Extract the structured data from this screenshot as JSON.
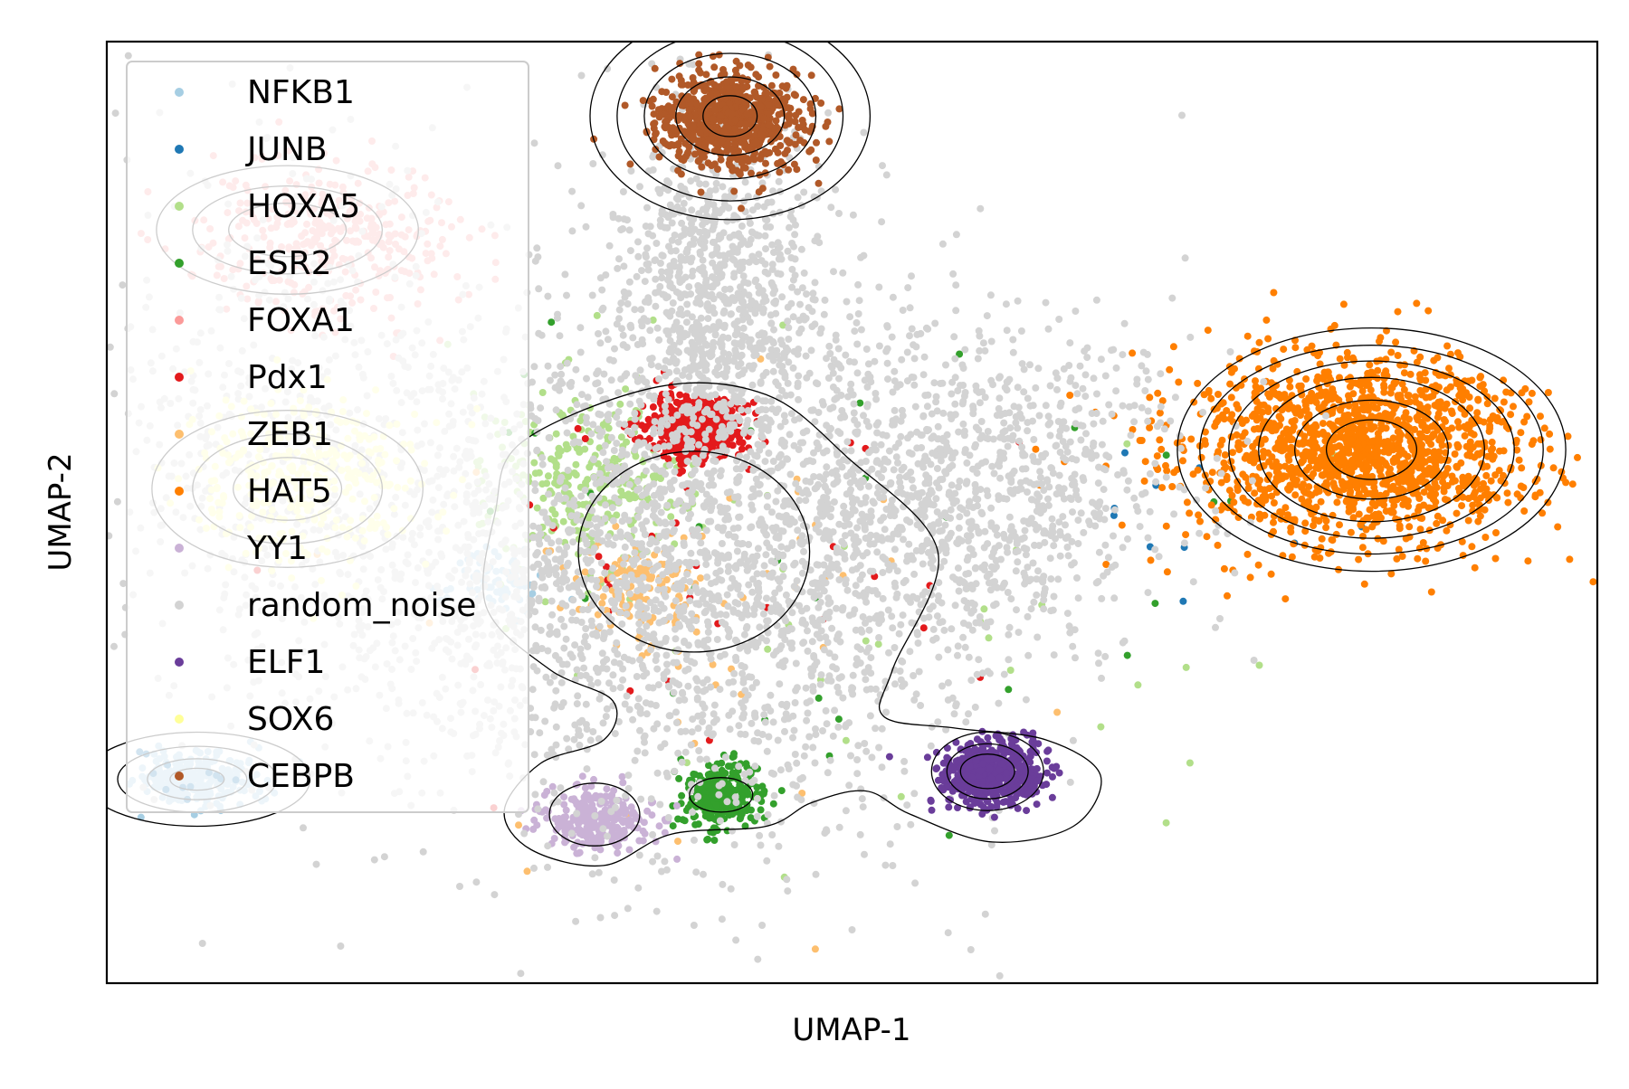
{
  "chart_data": {
    "type": "scatter",
    "title": "",
    "xlabel": "UMAP-1",
    "ylabel": "UMAP-2",
    "xlim": [
      -4.5,
      12.0
    ],
    "ylim": [
      -4.0,
      8.0
    ],
    "grid": false,
    "ticks_shown": false,
    "legend_placement": "upper-left",
    "series": [
      {
        "name": "NFKB1",
        "color": "#a6cee3",
        "clusters": [
          {
            "x": -3.5,
            "y": -1.4,
            "sx": 0.32,
            "sy": 0.18,
            "n": 260
          },
          {
            "x": -0.2,
            "y": 1.1,
            "sx": 0.28,
            "sy": 0.22,
            "n": 70
          }
        ]
      },
      {
        "name": "JUNB",
        "color": "#1f78b4",
        "clusters": [
          {
            "x": -3.5,
            "y": -1.4,
            "sx": 0.3,
            "sy": 0.2,
            "n": 12
          },
          {
            "x": 7.0,
            "y": 2.0,
            "sx": 0.8,
            "sy": 0.5,
            "n": 10
          }
        ]
      },
      {
        "name": "HOXA5",
        "color": "#b2df8a",
        "clusters": [
          {
            "x": 0.9,
            "y": 2.4,
            "sx": 0.55,
            "sy": 0.55,
            "n": 300
          },
          {
            "x": 3.5,
            "y": 1.0,
            "sx": 2.5,
            "sy": 2.0,
            "n": 40
          }
        ]
      },
      {
        "name": "ESR2",
        "color": "#33a02c",
        "clusters": [
          {
            "x": 2.3,
            "y": -1.6,
            "sx": 0.2,
            "sy": 0.2,
            "n": 320
          },
          {
            "x": 4.0,
            "y": 1.0,
            "sx": 2.5,
            "sy": 2.0,
            "n": 30
          }
        ]
      },
      {
        "name": "FOXA1",
        "color": "#fb9a99",
        "clusters": [
          {
            "x": -2.0,
            "y": 5.5,
            "sx": 0.75,
            "sy": 0.5,
            "n": 350
          }
        ]
      },
      {
        "name": "Pdx1",
        "color": "#e31a1c",
        "clusters": [
          {
            "x": 2.0,
            "y": 3.1,
            "sx": 0.28,
            "sy": 0.22,
            "n": 420
          },
          {
            "x": 2.5,
            "y": 1.5,
            "sx": 1.8,
            "sy": 1.6,
            "n": 35
          }
        ]
      },
      {
        "name": "ZEB1",
        "color": "#fdbf6f",
        "clusters": [
          {
            "x": 1.4,
            "y": 1.0,
            "sx": 0.35,
            "sy": 0.35,
            "n": 120
          },
          {
            "x": 2.5,
            "y": 0.5,
            "sx": 1.8,
            "sy": 1.8,
            "n": 40
          }
        ]
      },
      {
        "name": "HAT5",
        "color": "#ff7f00",
        "clusters": [
          {
            "x": 9.4,
            "y": 2.8,
            "sx": 0.95,
            "sy": 0.6,
            "n": 1500
          },
          {
            "x": 7.5,
            "y": 2.6,
            "sx": 1.0,
            "sy": 0.6,
            "n": 40
          }
        ]
      },
      {
        "name": "YY1",
        "color": "#cab2d6",
        "clusters": [
          {
            "x": 0.9,
            "y": -1.9,
            "sx": 0.3,
            "sy": 0.22,
            "n": 260
          }
        ]
      },
      {
        "name": "random_noise",
        "color": "#d3d3d3",
        "clusters": [
          {
            "x": 2.5,
            "y": 1.5,
            "sx": 1.5,
            "sy": 1.8,
            "n": 2000
          },
          {
            "x": 5.2,
            "y": 2.3,
            "sx": 1.2,
            "sy": 1.0,
            "n": 900
          },
          {
            "x": 2.2,
            "y": 5.0,
            "sx": 0.55,
            "sy": 1.1,
            "n": 800
          },
          {
            "x": 0.0,
            "y": 1.0,
            "sx": 1.5,
            "sy": 1.5,
            "n": 800
          },
          {
            "x": -2.5,
            "y": 3.0,
            "sx": 1.2,
            "sy": 1.6,
            "n": 500
          }
        ]
      },
      {
        "name": "ELF1",
        "color": "#6a3d9a",
        "clusters": [
          {
            "x": 5.3,
            "y": -1.3,
            "sx": 0.28,
            "sy": 0.2,
            "n": 600
          }
        ]
      },
      {
        "name": "SOX6",
        "color": "#ffff99",
        "clusters": [
          {
            "x": -2.3,
            "y": 2.4,
            "sx": 0.65,
            "sy": 0.55,
            "n": 350
          }
        ]
      },
      {
        "name": "CEBPB",
        "color": "#b15928",
        "clusters": [
          {
            "x": 2.4,
            "y": 7.0,
            "sx": 0.42,
            "sy": 0.33,
            "n": 700
          }
        ]
      }
    ],
    "contours": [
      {
        "cx": -3.5,
        "cy": -1.4,
        "levels": [
          [
            1.25,
            0.6
          ],
          [
            0.88,
            0.42
          ],
          [
            0.55,
            0.26
          ],
          [
            0.3,
            0.14
          ]
        ]
      },
      {
        "cx": 0.9,
        "cy": -1.85,
        "levels": [
          [
            0.5,
            0.4
          ]
        ]
      },
      {
        "cx": 2.3,
        "cy": -1.6,
        "levels": [
          [
            0.35,
            0.22
          ]
        ]
      },
      {
        "cx": 5.25,
        "cy": -1.3,
        "levels": [
          [
            0.62,
            0.5
          ],
          [
            0.45,
            0.35
          ],
          [
            0.3,
            0.22
          ]
        ]
      },
      {
        "cx": 2.4,
        "cy": 7.05,
        "levels": [
          [
            1.55,
            1.32
          ],
          [
            1.25,
            1.08
          ],
          [
            0.95,
            0.8
          ],
          [
            0.6,
            0.5
          ],
          [
            0.3,
            0.26
          ]
        ]
      },
      {
        "cx": 9.5,
        "cy": 2.8,
        "levels": [
          [
            2.15,
            1.55
          ],
          [
            1.9,
            1.33
          ],
          [
            1.58,
            1.13
          ],
          [
            1.25,
            0.92
          ],
          [
            0.85,
            0.63
          ],
          [
            0.5,
            0.38
          ]
        ]
      },
      {
        "cx": -2.5,
        "cy": 5.6,
        "levels": [
          [
            1.45,
            0.82
          ],
          [
            1.05,
            0.56
          ],
          [
            0.65,
            0.34
          ]
        ]
      },
      {
        "cx": -2.5,
        "cy": 2.3,
        "levels": [
          [
            1.5,
            1.0
          ],
          [
            1.05,
            0.7
          ],
          [
            0.6,
            0.4
          ]
        ]
      },
      {
        "cx": 2.0,
        "cy": 1.5,
        "levels": [
          [
            1.28,
            1.28
          ]
        ]
      }
    ],
    "big_contour": [
      [
        0.1,
        2.9
      ],
      [
        1.6,
        3.6
      ],
      [
        2.8,
        3.5
      ],
      [
        3.7,
        2.7
      ],
      [
        4.7,
        1.5
      ],
      [
        4.2,
        0.0
      ],
      [
        4.1,
        -0.6
      ],
      [
        4.9,
        -0.75
      ],
      [
        5.9,
        -0.9
      ],
      [
        6.5,
        -1.35
      ],
      [
        6.2,
        -2.0
      ],
      [
        5.3,
        -2.2
      ],
      [
        4.4,
        -1.85
      ],
      [
        3.9,
        -1.55
      ],
      [
        3.3,
        -1.7
      ],
      [
        2.8,
        -2.0
      ],
      [
        1.75,
        -2.1
      ],
      [
        1.0,
        -2.5
      ],
      [
        0.2,
        -2.3
      ],
      [
        -0.1,
        -1.8
      ],
      [
        0.3,
        -1.2
      ],
      [
        1.0,
        -0.9
      ],
      [
        1.1,
        -0.4
      ],
      [
        0.4,
        0.0
      ],
      [
        -0.3,
        0.8
      ],
      [
        -0.2,
        2.0
      ]
    ]
  }
}
